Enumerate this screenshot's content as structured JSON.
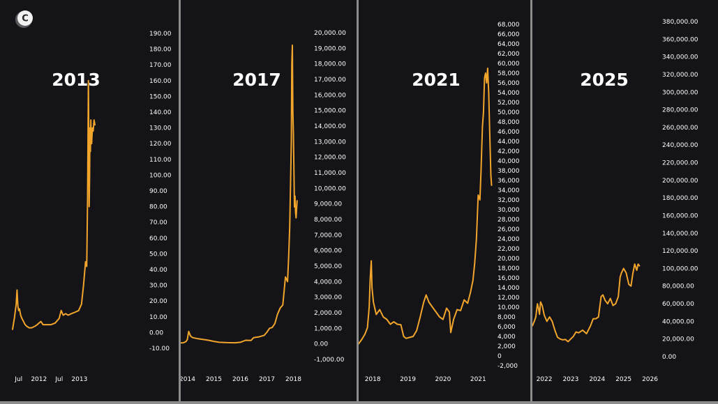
{
  "logo": {
    "glyph": "C"
  },
  "colors": {
    "background": "#141418",
    "line": "#f2a52b",
    "text": "#ffffff",
    "divider": "#8c8c8c"
  },
  "chart_data": [
    {
      "type": "line",
      "title": "2013",
      "ylim": [
        -10,
        190
      ],
      "yticks": [
        -10,
        0,
        10,
        20,
        30,
        40,
        50,
        60,
        70,
        80,
        90,
        100,
        110,
        120,
        130,
        140,
        150,
        160,
        170,
        180,
        190
      ],
      "ytick_labels": [
        "-10.00",
        "0.00",
        "10.00",
        "20.00",
        "30.00",
        "40.00",
        "50.00",
        "60.00",
        "70.00",
        "80.00",
        "90.00",
        "100.00",
        "110.00",
        "120.00",
        "130.00",
        "140.00",
        "150.00",
        "160.00",
        "170.00",
        "180.00",
        "190.00"
      ],
      "xlim": [
        2011.35,
        2014.0
      ],
      "xticks": [
        2011.5,
        2012.0,
        2012.5,
        2013.0
      ],
      "xtick_labels": [
        "Jul",
        "2012",
        "Jul",
        "2013"
      ],
      "series": [
        {
          "x": [
            2011.35,
            2011.4,
            2011.44,
            2011.46,
            2011.48,
            2011.5,
            2011.52,
            2011.55,
            2011.58,
            2011.62,
            2011.66,
            2011.7,
            2011.76,
            2011.82,
            2011.9,
            2011.96,
            2012.0,
            2012.05,
            2012.1,
            2012.2,
            2012.3,
            2012.4,
            2012.5,
            2012.55,
            2012.6,
            2012.66,
            2012.72,
            2012.8,
            2012.9,
            2012.98,
            2013.05,
            2013.1,
            2013.15,
            2013.18,
            2013.2,
            2013.22,
            2013.23,
            2013.24,
            2013.25,
            2013.26,
            2013.27,
            2013.28,
            2013.29,
            2013.3,
            2013.31,
            2013.32,
            2013.34,
            2013.36,
            2013.38
          ],
          "y": [
            2,
            10,
            18,
            27,
            17,
            14,
            15,
            11,
            9,
            7,
            5,
            4,
            3,
            3,
            4,
            5,
            6,
            7,
            5,
            5,
            5,
            6,
            9,
            14,
            11,
            12,
            11,
            12,
            13,
            14,
            18,
            30,
            45,
            42,
            85,
            160,
            120,
            80,
            100,
            130,
            115,
            135,
            120,
            120,
            125,
            130,
            128,
            135,
            132
          ]
        }
      ]
    },
    {
      "type": "line",
      "title": "2017",
      "ylim": [
        -1000,
        20000
      ],
      "yticks": [
        -1000,
        0,
        1000,
        2000,
        3000,
        4000,
        5000,
        6000,
        7000,
        8000,
        9000,
        10000,
        11000,
        12000,
        13000,
        14000,
        15000,
        16000,
        17000,
        18000,
        19000,
        20000
      ],
      "ytick_labels": [
        "-1,000.00",
        "0.00",
        "1,000.00",
        "2,000.00",
        "3,000.00",
        "4,000.00",
        "5,000.00",
        "6,000.00",
        "7,000.00",
        "8,000.00",
        "9,000.00",
        "10,000.00",
        "11,000.00",
        "12,000.00",
        "13,000.00",
        "14,000.00",
        "15,000.00",
        "16,000.00",
        "17,000.00",
        "18,000.00",
        "19,000.00",
        "20,000.00"
      ],
      "xlim": [
        2013.75,
        2018.75
      ],
      "xticks": [
        2014,
        2015,
        2016,
        2017,
        2018
      ],
      "xtick_labels": [
        "2014",
        "2015",
        "2016",
        "2017",
        "2018"
      ],
      "series": [
        {
          "x": [
            2013.75,
            2013.85,
            2013.95,
            2014.0,
            2014.05,
            2014.12,
            2014.2,
            2014.4,
            2014.6,
            2014.8,
            2015.0,
            2015.2,
            2015.5,
            2015.8,
            2016.0,
            2016.2,
            2016.4,
            2016.5,
            2016.7,
            2016.9,
            2017.0,
            2017.1,
            2017.2,
            2017.3,
            2017.4,
            2017.5,
            2017.6,
            2017.7,
            2017.78,
            2017.82,
            2017.86,
            2017.9,
            2017.92,
            2017.94,
            2017.96,
            2017.98,
            2018.0,
            2018.02,
            2018.04,
            2018.06,
            2018.08,
            2018.1,
            2018.12,
            2018.14
          ],
          "y": [
            60,
            70,
            150,
            280,
            800,
            500,
            400,
            330,
            280,
            230,
            160,
            100,
            80,
            70,
            100,
            230,
            220,
            400,
            450,
            550,
            750,
            1000,
            1050,
            1300,
            1900,
            2300,
            2500,
            4300,
            4000,
            5600,
            7500,
            11000,
            13000,
            18000,
            19200,
            15000,
            13500,
            11000,
            8800,
            9500,
            8500,
            8100,
            8700,
            9200
          ]
        }
      ]
    },
    {
      "type": "line",
      "title": "2021",
      "ylim": [
        -2000,
        68000
      ],
      "yticks": [
        -2000,
        0,
        2000,
        4000,
        6000,
        8000,
        10000,
        12000,
        14000,
        16000,
        18000,
        20000,
        22000,
        24000,
        26000,
        28000,
        30000,
        32000,
        34000,
        36000,
        38000,
        40000,
        42000,
        44000,
        46000,
        48000,
        50000,
        52000,
        54000,
        56000,
        58000,
        60000,
        62000,
        64000,
        66000,
        68000
      ],
      "ytick_labels": [
        "-2,000",
        "0",
        "2,000",
        "4,000",
        "6,000",
        "8,000",
        "10,000",
        "12,000",
        "14,000",
        "16,000",
        "18,000",
        "20,000",
        "22,000",
        "24,000",
        "26,000",
        "28,000",
        "30,000",
        "32,000",
        "34,000",
        "36,000",
        "38,000",
        "40,000",
        "42,000",
        "44,000",
        "46,000",
        "48,000",
        "50,000",
        "52,000",
        "54,000",
        "56,000",
        "58,000",
        "60,000",
        "62,000",
        "64,000",
        "66,000",
        "68,000"
      ],
      "xlim": [
        2017.6,
        2021.45
      ],
      "xticks": [
        2018,
        2019,
        2020,
        2021
      ],
      "xtick_labels": [
        "2018",
        "2019",
        "2020",
        "2021"
      ],
      "series": [
        {
          "x": [
            2017.6,
            2017.7,
            2017.78,
            2017.85,
            2017.9,
            2017.93,
            2017.96,
            2017.98,
            2018.02,
            2018.1,
            2018.2,
            2018.3,
            2018.4,
            2018.5,
            2018.6,
            2018.7,
            2018.8,
            2018.88,
            2018.95,
            2019.05,
            2019.15,
            2019.25,
            2019.35,
            2019.45,
            2019.52,
            2019.6,
            2019.7,
            2019.8,
            2019.9,
            2020.0,
            2020.1,
            2020.18,
            2020.22,
            2020.3,
            2020.4,
            2020.5,
            2020.6,
            2020.7,
            2020.78,
            2020.85,
            2020.9,
            2020.95,
            2021.0,
            2021.05,
            2021.08,
            2021.12,
            2021.15,
            2021.18,
            2021.21,
            2021.24,
            2021.27,
            2021.3,
            2021.33,
            2021.36,
            2021.38
          ],
          "y": [
            2500,
            3500,
            4500,
            5800,
            10000,
            16000,
            19500,
            14000,
            11000,
            8500,
            9500,
            8000,
            7500,
            6500,
            7000,
            6500,
            6400,
            4000,
            3600,
            3800,
            4000,
            5200,
            8000,
            11000,
            12500,
            11000,
            10000,
            9000,
            8000,
            7500,
            9800,
            9000,
            4800,
            7500,
            9500,
            9300,
            11500,
            10800,
            13000,
            15500,
            19000,
            24000,
            33000,
            32000,
            38000,
            47000,
            50000,
            57000,
            58000,
            56000,
            59000,
            54000,
            45000,
            37000,
            35000
          ]
        }
      ]
    },
    {
      "type": "line",
      "title": "2025",
      "ylim": [
        0,
        380000
      ],
      "yticks": [
        0,
        20000,
        40000,
        60000,
        80000,
        100000,
        120000,
        140000,
        160000,
        180000,
        200000,
        220000,
        240000,
        260000,
        280000,
        300000,
        320000,
        340000,
        360000,
        380000
      ],
      "ytick_labels": [
        "0.00",
        "20,000.00",
        "40,000.00",
        "60,000.00",
        "80,000.00",
        "100,000.00",
        "120,000.00",
        "140,000.00",
        "160,000.00",
        "180,000.00",
        "200,000.00",
        "220,000.00",
        "240,000.00",
        "260,000.00",
        "280,000.00",
        "300,000.00",
        "320,000.00",
        "340,000.00",
        "360,000.00",
        "380,000.00"
      ],
      "xlim": [
        2021.55,
        2026.25
      ],
      "xticks": [
        2022,
        2023,
        2024,
        2025,
        2026
      ],
      "xtick_labels": [
        "2022",
        "2023",
        "2024",
        "2025",
        "2026"
      ],
      "series": [
        {
          "x": [
            2021.55,
            2021.62,
            2021.68,
            2021.74,
            2021.78,
            2021.82,
            2021.86,
            2021.92,
            2022.0,
            2022.1,
            2022.2,
            2022.3,
            2022.4,
            2022.5,
            2022.6,
            2022.7,
            2022.8,
            2022.9,
            2023.0,
            2023.1,
            2023.2,
            2023.3,
            2023.45,
            2023.6,
            2023.75,
            2023.85,
            2023.95,
            2024.05,
            2024.15,
            2024.22,
            2024.3,
            2024.4,
            2024.5,
            2024.6,
            2024.7,
            2024.8,
            2024.87,
            2024.92,
            2025.0,
            2025.1,
            2025.2,
            2025.28,
            2025.35,
            2025.42,
            2025.5,
            2025.55,
            2025.6
          ],
          "y": [
            35000,
            40000,
            45000,
            60000,
            55000,
            48000,
            62000,
            58000,
            47000,
            40000,
            45000,
            40000,
            30000,
            22000,
            20000,
            19000,
            19500,
            17000,
            20000,
            23000,
            28000,
            27000,
            30000,
            26000,
            35000,
            43000,
            43000,
            45000,
            68000,
            70000,
            64000,
            60000,
            66000,
            58000,
            60000,
            68000,
            90000,
            95000,
            100000,
            95000,
            82000,
            80000,
            94000,
            105000,
            98000,
            105000,
            103000
          ]
        }
      ]
    }
  ]
}
